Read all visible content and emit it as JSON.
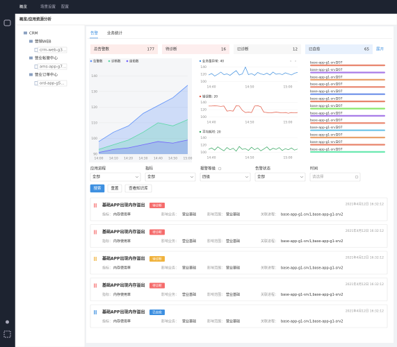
{
  "topbar": {
    "items": [
      "概览",
      "场景设置",
      "配置"
    ]
  },
  "breadcrumb": "概览/应用资源分析",
  "tree": {
    "root": "CRM",
    "groups": [
      {
        "label": "营销WEB",
        "children": [
          "crm-web-g3..."
        ]
      },
      {
        "label": "营业帐管中心",
        "children": [
          "ams-app-g7..."
        ]
      },
      {
        "label": "营业订单中心",
        "children": [
          "ord-app-g5..."
        ]
      }
    ]
  },
  "tabs": [
    "告警",
    "业务统计"
  ],
  "stats": [
    {
      "label": "总告警数",
      "value": 177,
      "color": "#fdecea"
    },
    {
      "label": "待诊断",
      "value": 16,
      "color": "#fdeeee"
    },
    {
      "label": "已诊断",
      "value": 12,
      "color": "#f7f7f7"
    },
    {
      "label": "已自愈",
      "value": 65,
      "color": "#e8f1fd"
    }
  ],
  "expand": "展开",
  "overview_chart": {
    "type": "area",
    "ylim": [
      90,
      145
    ],
    "yticks": [
      90,
      100,
      110,
      120,
      130,
      140
    ],
    "categories": [
      "14:00",
      "14:10",
      "14:20",
      "14:30",
      "14:40",
      "14:50",
      "15:00"
    ],
    "series": [
      {
        "name": "告警数",
        "color": "#5b8ff9",
        "values": [
          98,
          104,
          108,
          116,
          121,
          126,
          134
        ]
      },
      {
        "name": "诊断数",
        "color": "#5ad8a6",
        "values": [
          93,
          96,
          99,
          104,
          110,
          108,
          112
        ]
      },
      {
        "name": "自愈数",
        "color": "#7262fd",
        "values": [
          91,
          93,
          94,
          96,
          98,
          97,
          99
        ]
      }
    ]
  },
  "metric_charts": [
    {
      "type": "line",
      "title": "业务量异常: 40",
      "color": "#3d8fe0",
      "ylim": [
        95,
        145
      ],
      "yticks": [
        100,
        120,
        140
      ],
      "xlabels": [
        "14:40",
        "14:50",
        "15:00"
      ],
      "values": [
        118,
        122,
        115,
        120,
        126,
        119,
        121,
        117,
        124,
        130,
        118,
        121,
        140,
        119,
        122,
        117,
        125,
        121,
        119,
        123,
        118,
        126,
        120,
        122,
        119,
        124,
        121,
        118,
        123,
        125
      ]
    },
    {
      "type": "line",
      "title": "错误数: 20",
      "color": "#e0523d",
      "ylim": [
        95,
        145
      ],
      "yticks": [
        100,
        120,
        140
      ],
      "xlabels": [
        "14:40",
        "14:50",
        "15:00"
      ],
      "values": [
        130,
        130,
        131,
        130,
        129,
        130,
        116,
        117,
        116,
        131,
        130,
        118,
        112,
        113,
        112,
        130,
        131,
        128,
        113,
        112,
        111,
        112,
        113,
        112,
        111,
        112,
        110,
        112,
        111,
        112
      ]
    },
    {
      "type": "line",
      "title": "平均耗时: 20",
      "color": "#2ea35a",
      "ylim": [
        95,
        145
      ],
      "yticks": [
        100,
        120,
        140
      ],
      "xlabels": [
        "14:40",
        "14:50",
        "15:00"
      ],
      "values": [
        108,
        112,
        106,
        115,
        109,
        104,
        113,
        107,
        111,
        103,
        116,
        108,
        110,
        105,
        114,
        107,
        112,
        104,
        109,
        115,
        106,
        111,
        108,
        113,
        105,
        110,
        107,
        112,
        106,
        109
      ]
    }
  ],
  "top_list": {
    "items": [
      {
        "name": "base-app-g1-srv1",
        "value": 207,
        "color": "#e8836b"
      },
      {
        "name": "base-app-g1-srv1",
        "value": 207,
        "color": "#a77be8"
      },
      {
        "name": "base-app-g1-srv1",
        "value": 207,
        "color": "#e8a06b"
      },
      {
        "name": "base-app-g1-srv1",
        "value": 207,
        "color": "#e8836b"
      },
      {
        "name": "base-app-g1-srv1",
        "value": 207,
        "color": "#6b8fe8"
      },
      {
        "name": "base-app-g1-srv1",
        "value": 207,
        "color": "#e8836b"
      },
      {
        "name": "base-app-g1-srv1",
        "value": 207,
        "color": "#8be86b"
      },
      {
        "name": "base-app-g1-srv1",
        "value": 207,
        "color": "#a77be8"
      },
      {
        "name": "base-app-g1-srv1",
        "value": 207,
        "color": "#e8836b"
      },
      {
        "name": "base-app-g1-srv1",
        "value": 207,
        "color": "#6bc4e8"
      },
      {
        "name": "base-app-g1-srv1",
        "value": 207,
        "color": "#e8a06b"
      },
      {
        "name": "base-app-g1-srv1",
        "value": 207,
        "color": "#e8836b"
      },
      {
        "name": "base-app-g1-srv1",
        "value": 207,
        "color": "#6be8b0"
      }
    ]
  },
  "filters": [
    {
      "label": "应用进程",
      "value": "全部"
    },
    {
      "label": "指标",
      "value": "全部"
    },
    {
      "label": "报警等级",
      "value": "四级"
    },
    {
      "label": "告警状态",
      "value": "全部"
    },
    {
      "label": "时间",
      "value": "请选择"
    }
  ],
  "buttons": [
    "搜索",
    "重置",
    "查看知识库"
  ],
  "alerts": [
    {
      "title": "基础APP出现内存溢出",
      "status": "待诊断",
      "color": "#f56c6c",
      "time": "2021年4月12日 16:32:12",
      "fields": [
        {
          "label": "指标：",
          "value": "内存使用率"
        },
        {
          "label": "影响业务：",
          "value": "营业基础"
        },
        {
          "label": "影响范围：",
          "value": "营业基础"
        },
        {
          "label": "关联进程：",
          "value": "base-app-g1-srv1,base-app-g1-srv2"
        }
      ]
    },
    {
      "title": "基础APP出现内存溢出",
      "status": "待诊断",
      "color": "#f56c6c",
      "time": "2021年4月12日 16:32:12",
      "fields": [
        {
          "label": "指标：",
          "value": "内存使用率"
        },
        {
          "label": "影响业务：",
          "value": "营业基础"
        },
        {
          "label": "影响范围：",
          "value": "营业基础"
        },
        {
          "label": "关联进程：",
          "value": "base-app-g1-srv1,base-app-g1-srv2"
        }
      ]
    },
    {
      "title": "基础APP出现内存溢出",
      "status": "待诊断",
      "color": "#f0b23c",
      "time": "2021年4月12日 16:32:12",
      "fields": [
        {
          "label": "指标：",
          "value": "内存使用率"
        },
        {
          "label": "影响业务：",
          "value": "营业基础"
        },
        {
          "label": "影响范围：",
          "value": "营业基础"
        },
        {
          "label": "关联进程：",
          "value": "base-app-g1-srv1,base-app-g1-srv2"
        }
      ]
    },
    {
      "title": "基础APP出现内存溢出",
      "status": "待诊断",
      "color": "#f56c6c",
      "time": "2021年4月12日 16:32:12",
      "fields": [
        {
          "label": "指标：",
          "value": "内存使用率"
        },
        {
          "label": "影响业务：",
          "value": "营业基础"
        },
        {
          "label": "影响范围：",
          "value": "营业基础"
        },
        {
          "label": "关联进程：",
          "value": "base-app-g1-srv1,base-app-g1-srv2"
        }
      ]
    },
    {
      "title": "基础APP出现内存溢出",
      "status": "已自愈",
      "color": "#3d8fe0",
      "time": "2021年4月12日 16:32:12",
      "fields": [
        {
          "label": "指标：",
          "value": "内存使用率"
        },
        {
          "label": "影响业务：",
          "value": "营业基础"
        },
        {
          "label": "影响范围：",
          "value": "营业基础"
        },
        {
          "label": "关联进程：",
          "value": "base-app-g1-srv1,base-app-g1-srv2"
        }
      ]
    }
  ]
}
